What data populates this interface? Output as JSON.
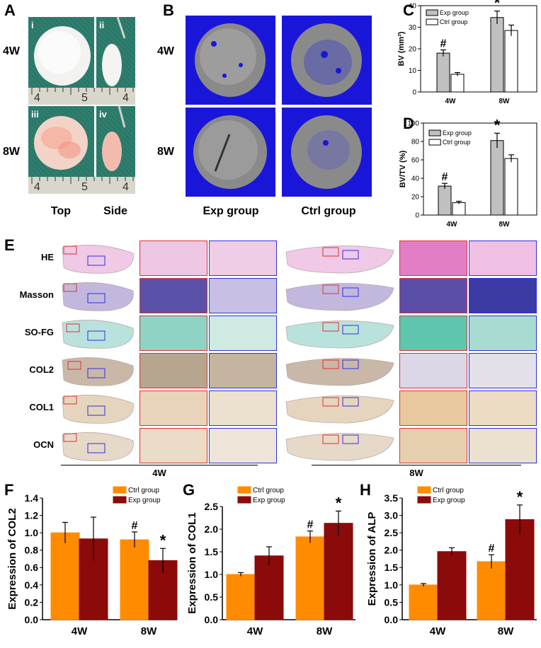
{
  "panels": {
    "A": "A",
    "B": "B",
    "C": "C",
    "D": "D",
    "E": "E",
    "F": "F",
    "G": "G",
    "H": "H"
  },
  "panelA": {
    "row_labels": [
      "4W",
      "8W"
    ],
    "col_labels": [
      "Top",
      "Side"
    ],
    "sub_labels": [
      "i",
      "ii",
      "iii",
      "iv"
    ],
    "ruler_marks": [
      "4",
      "5",
      "4"
    ]
  },
  "panelB": {
    "row_labels": [
      "4W",
      "8W"
    ],
    "col_labels": [
      "Exp group",
      "Ctrl group"
    ]
  },
  "panelE": {
    "stains": [
      "HE",
      "Masson",
      "SO-FG",
      "COL2",
      "COL1",
      "OCN"
    ],
    "timepoints": [
      "4W",
      "8W"
    ]
  },
  "colors": {
    "exp_bar": "#c0c0c0",
    "ctrl_bar": "#ffffff",
    "ctrl_orange": "#ff8c00",
    "exp_red": "#8b0a0a",
    "ct_blue": "#1a16d9"
  },
  "chart_data": [
    {
      "id": "C",
      "type": "bar",
      "title": "",
      "xlabel": "",
      "ylabel": "BV (mm³)",
      "categories": [
        "4W",
        "8W"
      ],
      "ylim": [
        0,
        40
      ],
      "yticks": [
        0,
        10,
        20,
        30,
        40
      ],
      "series": [
        {
          "name": "Exp group",
          "values": [
            18,
            34.5
          ],
          "errors": [
            1.5,
            3
          ]
        },
        {
          "name": "Ctrl group",
          "values": [
            8.2,
            28.5
          ],
          "errors": [
            0.8,
            2.5
          ]
        }
      ],
      "annotations": [
        {
          "category": "4W",
          "series": "Exp group",
          "text": "#"
        },
        {
          "category": "8W",
          "series": "Exp group",
          "text": "*"
        }
      ],
      "legend": "top-left"
    },
    {
      "id": "D",
      "type": "bar",
      "title": "",
      "xlabel": "",
      "ylabel": "BV/TV (%)",
      "categories": [
        "4W",
        "8W"
      ],
      "ylim": [
        0,
        100
      ],
      "yticks": [
        0,
        20,
        40,
        60,
        80,
        100
      ],
      "series": [
        {
          "name": "Exp group",
          "values": [
            31.5,
            81
          ],
          "errors": [
            3,
            8
          ]
        },
        {
          "name": "Ctrl group",
          "values": [
            13.5,
            61.5
          ],
          "errors": [
            1.5,
            4
          ]
        }
      ],
      "annotations": [
        {
          "category": "4W",
          "series": "Exp group",
          "text": "#"
        },
        {
          "category": "8W",
          "series": "Exp group",
          "text": "*"
        }
      ],
      "legend": "top-left"
    },
    {
      "id": "F",
      "type": "bar",
      "title": "",
      "xlabel": "",
      "ylabel": "Expression of COL2",
      "categories": [
        "4W",
        "8W"
      ],
      "ylim": [
        0,
        1.4
      ],
      "yticks": [
        "0.0",
        "0.2",
        "0.4",
        "0.6",
        "0.8",
        "1.0",
        "1.2",
        "1.4"
      ],
      "series": [
        {
          "name": "Ctrl group",
          "values": [
            1.0,
            0.92
          ],
          "errors": [
            0.12,
            0.09
          ]
        },
        {
          "name": "Exp group",
          "values": [
            0.93,
            0.68
          ],
          "errors": [
            0.25,
            0.14
          ]
        }
      ],
      "annotations": [
        {
          "category": "8W",
          "series": "Ctrl group",
          "text": "#"
        },
        {
          "category": "8W",
          "series": "Exp group",
          "text": "*"
        }
      ],
      "legend": "top-right"
    },
    {
      "id": "G",
      "type": "bar",
      "title": "",
      "xlabel": "",
      "ylabel": "Expression of COL1",
      "categories": [
        "4W",
        "8W"
      ],
      "ylim": [
        0,
        2.5
      ],
      "yticks": [
        "0.0",
        "0.5",
        "1.0",
        "1.5",
        "2.0",
        "2.5"
      ],
      "series": [
        {
          "name": "Ctrl group",
          "values": [
            1.0,
            1.83
          ],
          "errors": [
            0.04,
            0.13
          ]
        },
        {
          "name": "Exp group",
          "values": [
            1.41,
            2.13
          ],
          "errors": [
            0.2,
            0.27
          ]
        }
      ],
      "annotations": [
        {
          "category": "8W",
          "series": "Ctrl group",
          "text": "#"
        },
        {
          "category": "8W",
          "series": "Exp group",
          "text": "*"
        }
      ],
      "legend": "top-left"
    },
    {
      "id": "H",
      "type": "bar",
      "title": "",
      "xlabel": "",
      "ylabel": "Expression of ALP",
      "categories": [
        "4W",
        "8W"
      ],
      "ylim": [
        0,
        3.5
      ],
      "yticks": [
        "0.0",
        "0.5",
        "1.0",
        "1.5",
        "2.0",
        "2.5",
        "3.0",
        "3.5"
      ],
      "series": [
        {
          "name": "Ctrl group",
          "values": [
            1.0,
            1.67
          ],
          "errors": [
            0.04,
            0.2
          ]
        },
        {
          "name": "Exp group",
          "values": [
            1.96,
            2.88
          ],
          "errors": [
            0.11,
            0.42
          ]
        }
      ],
      "annotations": [
        {
          "category": "8W",
          "series": "Ctrl group",
          "text": "#"
        },
        {
          "category": "8W",
          "series": "Exp group",
          "text": "*"
        }
      ],
      "legend": "top-left"
    }
  ]
}
